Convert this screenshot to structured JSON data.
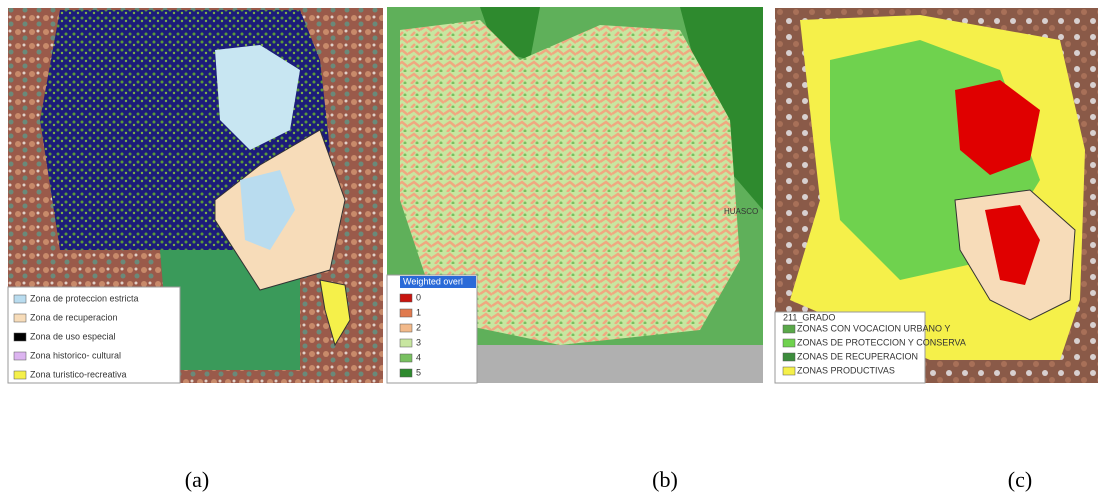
{
  "panels": [
    {
      "caption": "(a)",
      "legend": {
        "items": [
          {
            "label": "Zona de proteccion estricta",
            "color": "#b9dcef"
          },
          {
            "label": "Zona de recuperacion",
            "color": "#f7dcb9"
          },
          {
            "label": "Zona de uso especial",
            "color": "#000000"
          },
          {
            "label": "Zona historico- cultural",
            "color": "#dcb4f0"
          },
          {
            "label": "Zona turistico-recreativa",
            "color": "#f5f04a"
          }
        ]
      }
    },
    {
      "caption": "(b)",
      "map_label": "HUASCO",
      "legend": {
        "title": "Weighted overl",
        "items": [
          {
            "label": "0",
            "color": "#c8140f"
          },
          {
            "label": "1",
            "color": "#e07a4e"
          },
          {
            "label": "2",
            "color": "#f2b98a"
          },
          {
            "label": "3",
            "color": "#c8e6a0"
          },
          {
            "label": "4",
            "color": "#78c060"
          },
          {
            "label": "5",
            "color": "#2e8a2e"
          }
        ]
      }
    },
    {
      "caption": "(c)",
      "legend": {
        "title": "211_GRADO",
        "items": [
          {
            "label": "ZONAS CON VOCACION URBANO Y",
            "color": "#5aa84a"
          },
          {
            "label": "ZONAS DE PROTECCION Y CONSERVA",
            "color": "#6fd24e"
          },
          {
            "label": "ZONAS DE RECUPERACION",
            "color": "#3c8c3c"
          },
          {
            "label": "ZONAS PRODUCTIVAS",
            "color": "#f5f04a"
          }
        ]
      }
    }
  ]
}
